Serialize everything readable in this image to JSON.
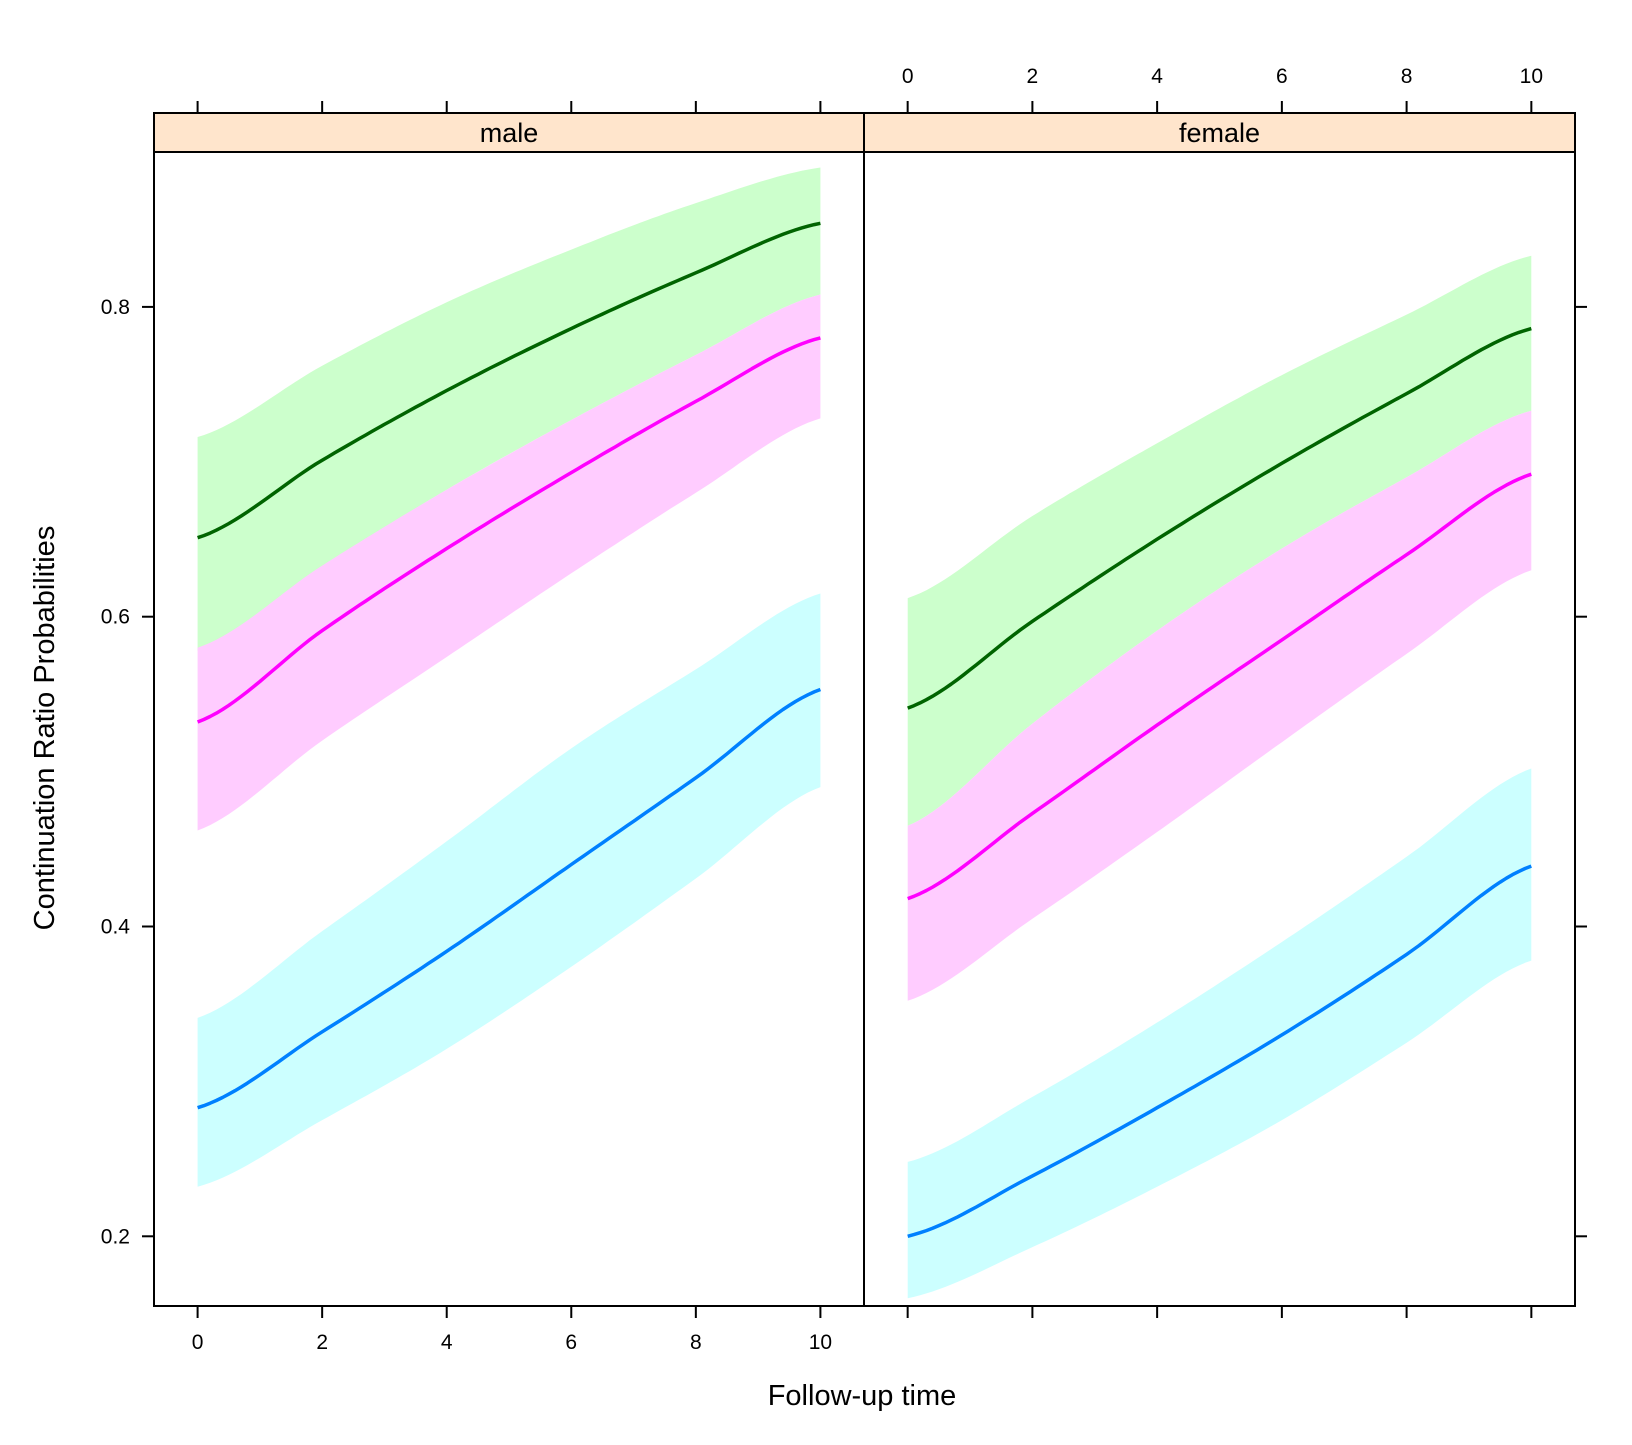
{
  "chart_data": {
    "type": "line",
    "layout": "trellis, 2 panels side by side with shaded confidence bands",
    "xlabel": "Follow-up time",
    "ylabel": "Continuation Ratio Probabilities",
    "x_ticks": [
      0,
      2,
      4,
      6,
      8,
      10
    ],
    "y_ticks": [
      0.2,
      0.4,
      0.6,
      0.8
    ],
    "xlim": [
      -0.7,
      10.7
    ],
    "ylim": [
      0.155,
      0.9
    ],
    "grid": false,
    "legend": "none",
    "strip_color": "#ffe5cc",
    "x": [
      0,
      2,
      4,
      6,
      8,
      10
    ],
    "panels": [
      {
        "label": "male",
        "series": [
          {
            "color": "#006400",
            "band_color": "#ccffcc",
            "values": [
              0.651,
              0.701,
              0.746,
              0.786,
              0.822,
              0.854
            ],
            "lower": [
              0.578,
              0.632,
              0.682,
              0.727,
              0.769,
              0.808
            ],
            "upper": [
              0.716,
              0.762,
              0.803,
              0.837,
              0.867,
              0.89
            ]
          },
          {
            "color": "#ff00ff",
            "band_color": "#ffccff",
            "values": [
              0.532,
              0.591,
              0.644,
              0.693,
              0.739,
              0.78
            ],
            "lower": [
              0.462,
              0.52,
              0.574,
              0.628,
              0.68,
              0.728
            ],
            "upper": [
              0.58,
              0.633,
              0.682,
              0.727,
              0.769,
              0.808
            ]
          },
          {
            "color": "#0080ff",
            "band_color": "#ccffff",
            "values": [
              0.283,
              0.332,
              0.384,
              0.44,
              0.496,
              0.553
            ],
            "lower": [
              0.232,
              0.275,
              0.321,
              0.374,
              0.431,
              0.49
            ],
            "upper": [
              0.341,
              0.397,
              0.455,
              0.515,
              0.566,
              0.615
            ]
          }
        ]
      },
      {
        "label": "female",
        "series": [
          {
            "color": "#006400",
            "band_color": "#ccffcc",
            "values": [
              0.541,
              0.597,
              0.65,
              0.699,
              0.744,
              0.786
            ],
            "lower": [
              0.465,
              0.531,
              0.591,
              0.644,
              0.69,
              0.733
            ],
            "upper": [
              0.612,
              0.665,
              0.712,
              0.756,
              0.795,
              0.833
            ]
          },
          {
            "color": "#ff00ff",
            "band_color": "#ffccff",
            "values": [
              0.418,
              0.473,
              0.53,
              0.585,
              0.64,
              0.692
            ],
            "lower": [
              0.352,
              0.405,
              0.461,
              0.519,
              0.576,
              0.63
            ],
            "upper": [
              0.465,
              0.531,
              0.591,
              0.644,
              0.69,
              0.733
            ]
          },
          {
            "color": "#0080ff",
            "band_color": "#ccffff",
            "values": [
              0.2,
              0.239,
              0.283,
              0.33,
              0.382,
              0.439
            ],
            "lower": [
              0.16,
              0.193,
              0.232,
              0.275,
              0.325,
              0.378
            ],
            "upper": [
              0.248,
              0.29,
              0.338,
              0.39,
              0.445,
              0.502
            ]
          }
        ]
      }
    ]
  }
}
